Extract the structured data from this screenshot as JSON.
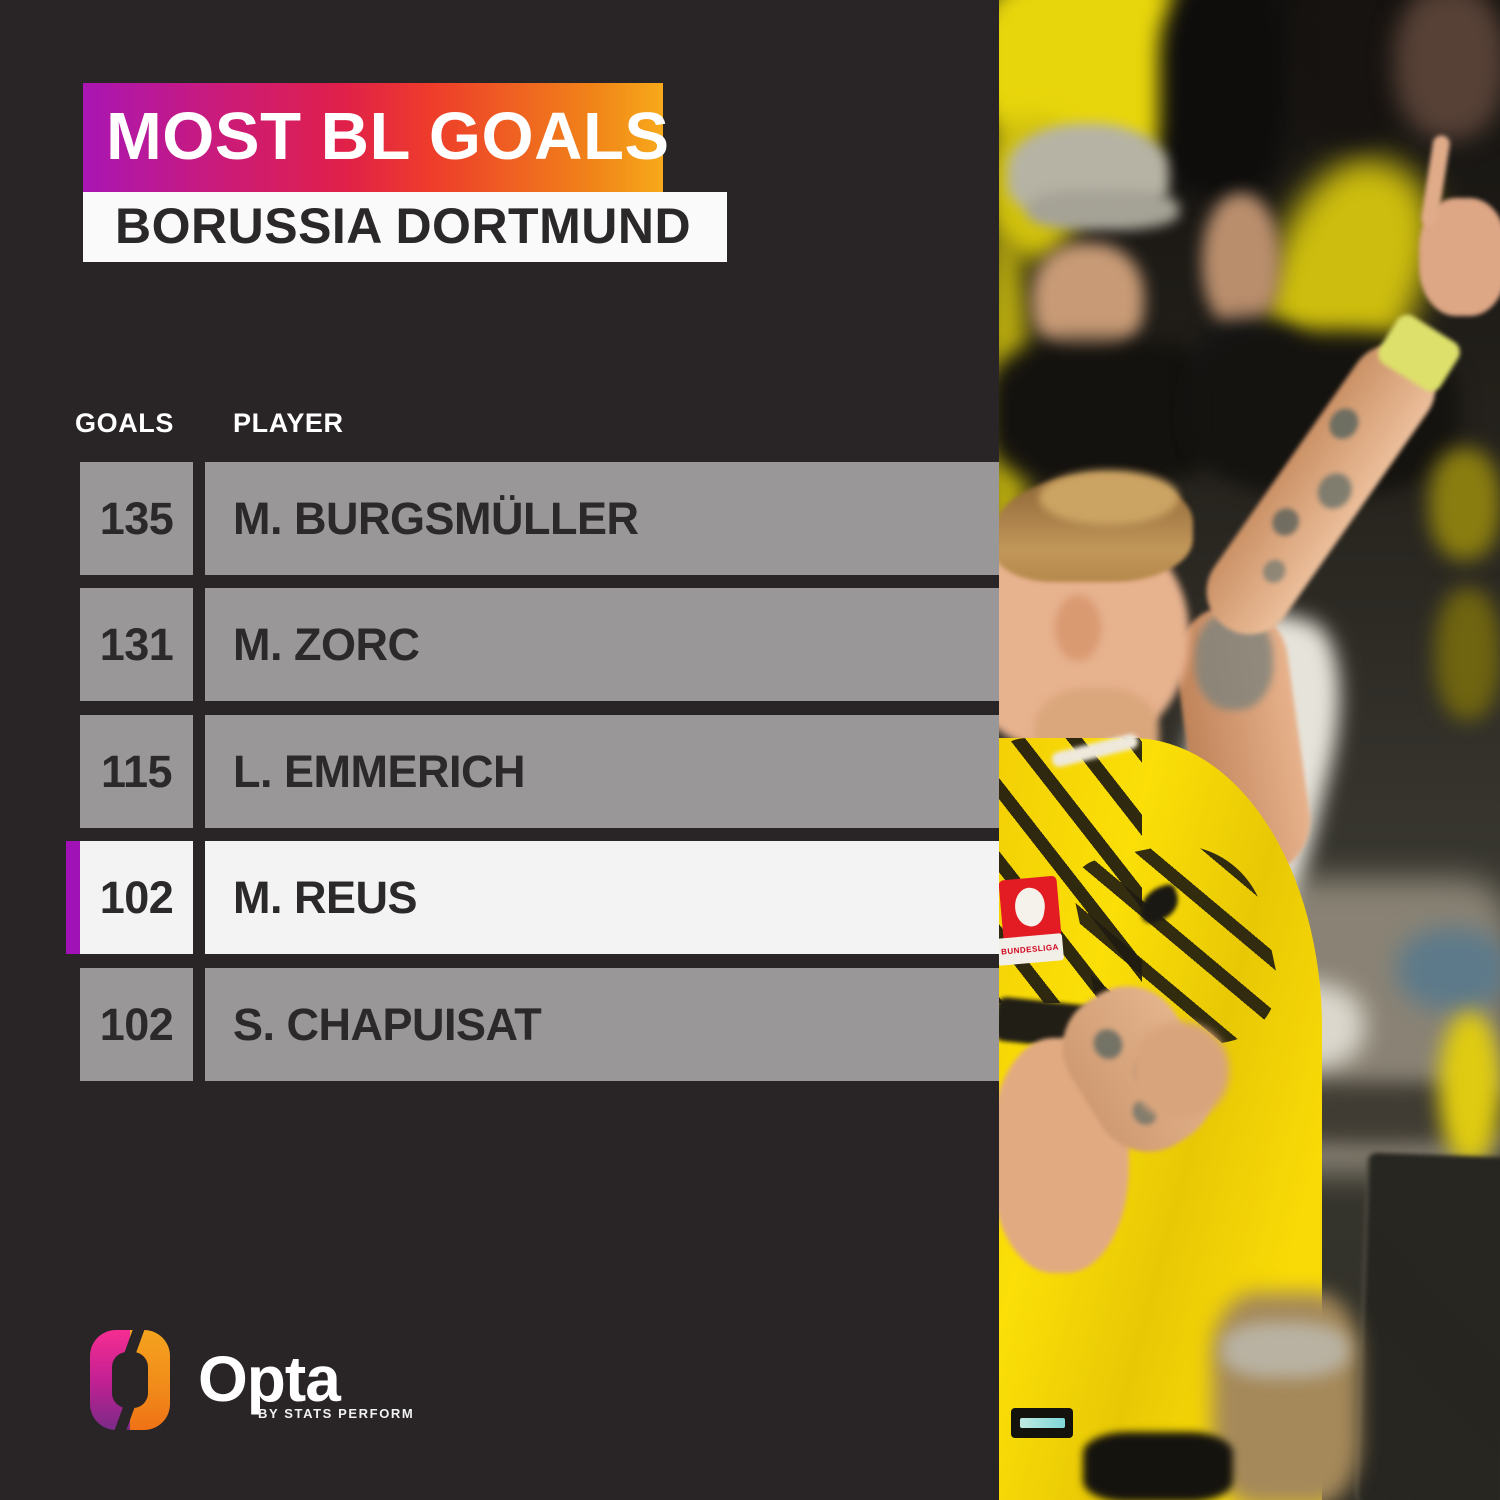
{
  "header": {
    "title": "MOST BL GOALS",
    "subtitle": "BORUSSIA DORTMUND"
  },
  "table": {
    "columns": {
      "goals": "GOALS",
      "player": "PLAYER"
    },
    "rows": [
      {
        "goals": "135",
        "player": "M. BURGSMÜLLER",
        "highlight": false
      },
      {
        "goals": "131",
        "player": "M. ZORC",
        "highlight": false
      },
      {
        "goals": "115",
        "player": "L. EMMERICH",
        "highlight": false
      },
      {
        "goals": "102",
        "player": "M. REUS",
        "highlight": true
      },
      {
        "goals": "102",
        "player": "S. CHAPUISAT",
        "highlight": false
      }
    ]
  },
  "branding": {
    "wordmark": "Opta",
    "tagline": "BY STATS PERFORM"
  },
  "photo": {
    "description": "Marco Reus in yellow Borussia Dortmund shirt celebrating with raised tattooed arm in front of blurred crowd",
    "patch_text": "BUNDESLIGA"
  },
  "palette": {
    "background": "#292526",
    "banner_gradient": [
      "#a916b4",
      "#e02049",
      "#f7a91b"
    ],
    "row_gray": "#9a9798",
    "row_highlight": "#f4f3f3",
    "highlight_stripe": "#a012b6",
    "row_text": "#2b292a",
    "header_text": "#ffffff",
    "subtitle_text": "#2b2829",
    "jersey_yellow": "#f8d802",
    "bundesliga_red": "#e31b23"
  },
  "chart_data": {
    "type": "table",
    "title": "MOST BL GOALS",
    "subtitle": "BORUSSIA DORTMUND",
    "columns": [
      "GOALS",
      "PLAYER"
    ],
    "rows": [
      [
        135,
        "M. BURGSMÜLLER"
      ],
      [
        131,
        "M. ZORC"
      ],
      [
        115,
        "L. EMMERICH"
      ],
      [
        102,
        "M. REUS"
      ],
      [
        102,
        "S. CHAPUISAT"
      ]
    ],
    "highlighted_row": "M. REUS",
    "layout": "ranked list, goals value column left, player name column right, 4th row highlighted"
  }
}
